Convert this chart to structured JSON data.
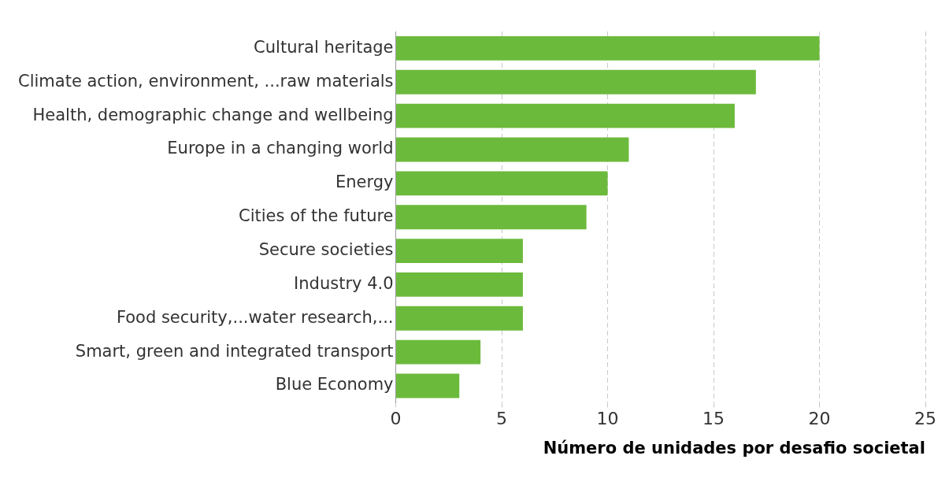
{
  "chart_data": {
    "type": "bar",
    "orientation": "horizontal",
    "xlabel": "Número de unidades por desafio societal",
    "categories": [
      "Cultural heritage",
      "Climate action, environment, ...raw materials",
      "Health, demographic change and wellbeing",
      "Europe in a changing world",
      "Energy",
      "Cities of the future",
      "Secure societies",
      "Industry 4.0",
      "Food security,...water research,...",
      "Smart, green and integrated transport",
      "Blue Economy"
    ],
    "values": [
      20,
      17,
      16,
      11,
      10,
      9,
      6,
      6,
      6,
      4,
      3
    ],
    "color": "#6cba3c",
    "xlim": [
      0,
      25
    ],
    "xticks": [
      0,
      5,
      10,
      15,
      20,
      25
    ],
    "grid": "x",
    "legend": false
  }
}
